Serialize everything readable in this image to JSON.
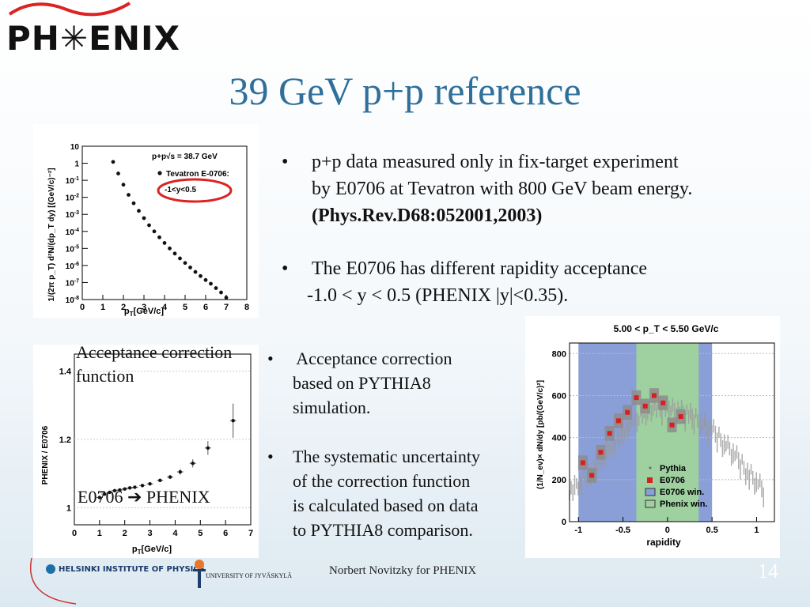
{
  "header": {
    "logo_text": "PH✳ENIX",
    "title": "39 GeV p+p reference"
  },
  "plot1": {
    "annotation_line1": "p+p√s = 38.7 GeV",
    "legend_label": "Tevatron E-0706:",
    "legend_range": "-1<y<0.5",
    "xlabel": "p",
    "xlabel_sub": "T",
    "xlabel_unit": "[GeV/c]",
    "ylabel": "1/(2π p_T) d²N/(dp_T dy) [(GeV/c)⁻²]"
  },
  "plot2": {
    "caption_line1": "Acceptance correction",
    "caption_line2": "function",
    "label": "E0706 ➔ PHENIX",
    "ylabel": "PHENIX / E0706",
    "xlabel": "p",
    "xlabel_sub": "T",
    "xlabel_unit": "[GeV/c]"
  },
  "plot3": {
    "title": "5.00 < p_T < 5.50 GeV/c",
    "xlabel": "rapidity",
    "ylabel": "(1/N_ev)× dN/dy [pb/(GeV/c)²]",
    "legend": [
      "Pythia",
      "E0706",
      "E0706 win.",
      "Phenix win."
    ],
    "colors": {
      "e0706_window": "#8a9fd8",
      "phenix_window": "#9fd0a0",
      "marker": "#d81e1e"
    }
  },
  "bullets": {
    "b1_l1": "p+p data measured only in fix-target experiment",
    "b1_l2": "by E0706 at Tevatron with 800 GeV beam energy.",
    "b1_l3": "(Phys.Rev.D68:052001,2003)",
    "b2_l1": "The E0706 has different rapidity acceptance",
    "b2_l2": "-1.0 < y < 0.5 (PHENIX |y|<0.35).",
    "b3_l1": " Acceptance correction",
    "b3_l2": "based on PYTHIA8",
    "b3_l3": "simulation.",
    "b4_l1": "The systematic uncertainty",
    "b4_l2": "of the correction function",
    "b4_l3": "is calculated based on data",
    "b4_l4": "to PYTHIA8 comparison."
  },
  "footer": {
    "helsinki": "HELSINKI INSTITUTE OF PHYSICS",
    "jyvaskyla": "UNIVERSITY OF JYVÄSKYLÄ",
    "author": "Norbert Novitzky for PHENIX",
    "page": "14"
  },
  "chart_data": [
    {
      "type": "scatter",
      "name": "E0706 invariant yield",
      "yscale": "log",
      "xlim": [
        0,
        8
      ],
      "ylim": [
        1e-08,
        10
      ],
      "x_ticks": [
        0,
        1,
        2,
        3,
        4,
        5,
        6,
        7,
        8
      ],
      "y_ticks": [
        "10^{-8}",
        "10^{-7}",
        "10^{-6}",
        "10^{-5}",
        "10^{-4}",
        "10^{-3}",
        "10^{-2}",
        "10^{-1}",
        "1",
        "10"
      ],
      "points": [
        [
          1.5,
          1.2
        ],
        [
          1.75,
          0.25
        ],
        [
          2.0,
          0.055
        ],
        [
          2.25,
          0.014
        ],
        [
          2.5,
          0.0045
        ],
        [
          2.75,
          0.0016
        ],
        [
          3.0,
          0.0006
        ],
        [
          3.25,
          0.00023
        ],
        [
          3.5,
          0.0001
        ],
        [
          3.75,
          4.5e-05
        ],
        [
          4.0,
          2.1e-05
        ],
        [
          4.25,
          1e-05
        ],
        [
          4.5,
          5e-06
        ],
        [
          4.75,
          2.6e-06
        ],
        [
          5.0,
          1.4e-06
        ],
        [
          5.25,
          7.6e-07
        ],
        [
          5.5,
          4.2e-07
        ],
        [
          5.75,
          2.4e-07
        ],
        [
          6.0,
          1.4e-07
        ],
        [
          6.25,
          8.5e-08
        ],
        [
          6.5,
          4.7e-08
        ],
        [
          6.75,
          2.6e-08
        ],
        [
          7.0,
          1.3e-08
        ]
      ]
    },
    {
      "type": "scatter",
      "name": "Acceptance correction",
      "xlim": [
        0,
        7
      ],
      "ylim": [
        0.95,
        1.45
      ],
      "x_ticks": [
        0,
        1,
        2,
        3,
        4,
        5,
        6,
        7
      ],
      "y_ticks": [
        1,
        1.2,
        1.4
      ],
      "points": [
        [
          1.0,
          1.03
        ],
        [
          1.2,
          1.04
        ],
        [
          1.4,
          1.045
        ],
        [
          1.6,
          1.05
        ],
        [
          1.8,
          1.052
        ],
        [
          2.0,
          1.055
        ],
        [
          2.2,
          1.058
        ],
        [
          2.4,
          1.06
        ],
        [
          2.7,
          1.065
        ],
        [
          3.0,
          1.07
        ],
        [
          3.4,
          1.08
        ],
        [
          3.8,
          1.09
        ],
        [
          4.2,
          1.105
        ],
        [
          4.7,
          1.13
        ],
        [
          5.3,
          1.175
        ],
        [
          6.3,
          1.255
        ]
      ],
      "errors": [
        0.003,
        0.003,
        0.003,
        0.003,
        0.003,
        0.003,
        0.003,
        0.003,
        0.004,
        0.004,
        0.005,
        0.006,
        0.008,
        0.012,
        0.02,
        0.05
      ]
    },
    {
      "type": "scatter",
      "name": "Rapidity distribution",
      "xlim": [
        -1.1,
        1.2
      ],
      "ylim": [
        0,
        850
      ],
      "x_ticks": [
        -1,
        -0.5,
        0,
        0.5,
        1
      ],
      "y_ticks": [
        0,
        200,
        400,
        600,
        800
      ],
      "e0706_window": [
        -1.0,
        0.5
      ],
      "phenix_window": [
        -0.35,
        0.35
      ],
      "e0706_points": [
        [
          -0.95,
          280
        ],
        [
          -0.85,
          220
        ],
        [
          -0.75,
          330
        ],
        [
          -0.65,
          420
        ],
        [
          -0.55,
          480
        ],
        [
          -0.45,
          520
        ],
        [
          -0.35,
          590
        ],
        [
          -0.25,
          550
        ],
        [
          -0.15,
          600
        ],
        [
          -0.05,
          565
        ],
        [
          0.05,
          460
        ],
        [
          0.15,
          500
        ]
      ],
      "pythia_envelope": [
        [
          -1.1,
          180
        ],
        [
          -0.9,
          250
        ],
        [
          -0.7,
          350
        ],
        [
          -0.5,
          460
        ],
        [
          -0.3,
          540
        ],
        [
          -0.1,
          580
        ],
        [
          0.1,
          570
        ],
        [
          0.3,
          530
        ],
        [
          0.5,
          470
        ],
        [
          0.7,
          380
        ],
        [
          0.9,
          270
        ],
        [
          1.1,
          170
        ]
      ]
    }
  ]
}
